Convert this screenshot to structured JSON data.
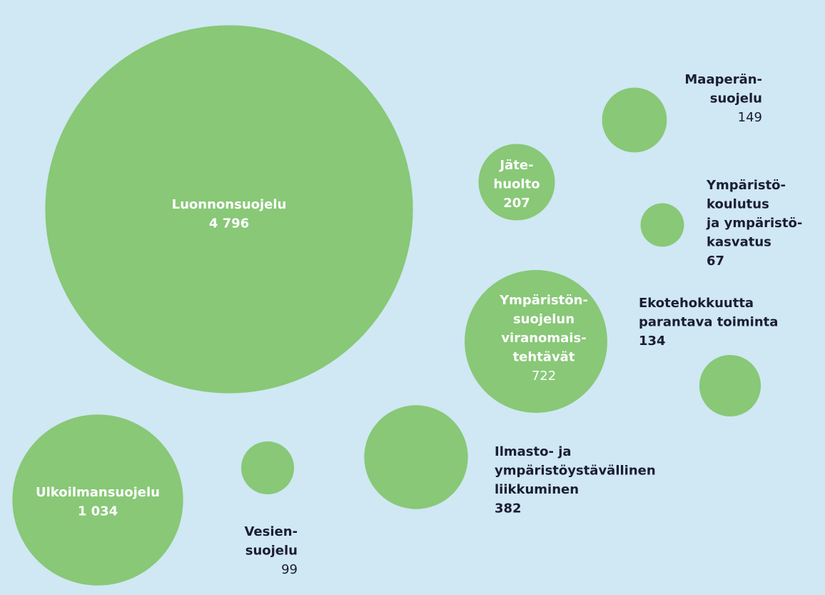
{
  "chart_data": {
    "type": "bubble",
    "color": "#88c877",
    "categories": [
      "Luonnonsuojelu",
      "Ulkoilmansuojelu",
      "Vesien-\nsuojelu",
      "Ilmasto- ja\nympäristöystävällinen\nliikkuminen",
      "Ympäristön-\nsuojelun\nviranomais-\ntehtävät",
      "Jäte-\nhuolto",
      "Maaperän-\nsuojelu",
      "Ympäristö-\nkoulutus\nja ympäristö-\nkasvatus",
      "Ekotehokkuutta\nparantava toiminta"
    ],
    "values": [
      4796,
      1034,
      99,
      382,
      722,
      207,
      149,
      67,
      134
    ],
    "value_labels": [
      "4 796",
      "1 034",
      "99",
      "382",
      "722",
      "207",
      "149",
      "67",
      "134"
    ]
  }
}
